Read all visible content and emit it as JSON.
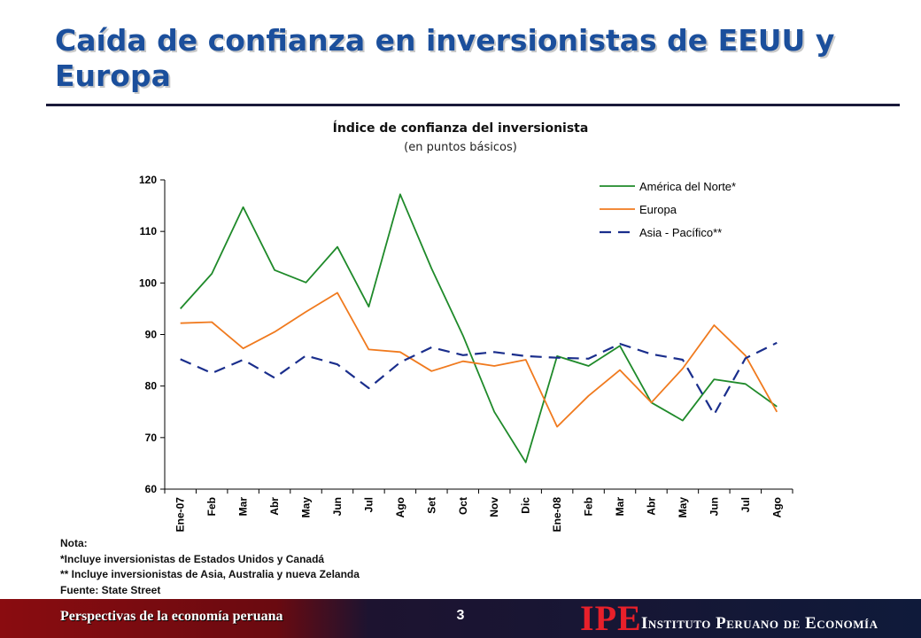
{
  "slide": {
    "title": "Caída de confianza en inversionistas de EEUU y Europa"
  },
  "chart_data": {
    "type": "line",
    "title": "Índice de confianza del inversionista",
    "subtitle": "(en puntos básicos)",
    "categories": [
      "Ene-07",
      "Feb",
      "Mar",
      "Abr",
      "May",
      "Jun",
      "Jul",
      "Ago",
      "Set",
      "Oct",
      "Nov",
      "Dic",
      "Ene-08",
      "Feb",
      "Mar",
      "Abr",
      "May",
      "Jun",
      "Jul",
      "Ago"
    ],
    "ylim": [
      60,
      120
    ],
    "yticks": [
      60,
      70,
      80,
      90,
      100,
      110,
      120
    ],
    "legend_position": "top-right",
    "grid": false,
    "series": [
      {
        "name": "América del Norte*",
        "color": "#1f8a2a",
        "dash": "solid",
        "values": [
          95,
          101.8,
          114.7,
          102.5,
          100.1,
          107.0,
          95.4,
          117.2,
          102.8,
          89.8,
          75.0,
          65.2,
          85.8,
          83.9,
          87.8,
          76.8,
          73.3,
          81.3,
          80.4,
          76.0
        ]
      },
      {
        "name": "Europa",
        "color": "#f07a1e",
        "dash": "solid",
        "values": [
          92.2,
          92.4,
          87.3,
          90.5,
          94.4,
          98.1,
          87.1,
          86.6,
          82.9,
          84.8,
          83.9,
          85.1,
          72.1,
          78.1,
          83.1,
          76.8,
          83.4,
          91.8,
          85.9,
          75.0
        ]
      },
      {
        "name": "Asia - Pacífico**",
        "color": "#1a2e8c",
        "dash": "dashed",
        "values": [
          85.2,
          82.5,
          85.1,
          81.6,
          85.9,
          84.2,
          79.6,
          84.6,
          87.5,
          86.0,
          86.6,
          85.8,
          85.5,
          85.3,
          88.2,
          86.2,
          85.1,
          74.5,
          85.4,
          88.4
        ]
      }
    ]
  },
  "notes": {
    "heading": "Nota:",
    "line1": "*Incluye inversionistas de Estados Unidos y Canadá",
    "line2": "** Incluye inversionistas de Asia, Australia y nueva Zelanda",
    "source": "Fuente: State Street"
  },
  "footer": {
    "left_text": "Perspectivas de la economía peruana",
    "page_number": "3",
    "logo_text": "IPE",
    "institute_name": "Instituto Peruano de Economía",
    "brand_colors": {
      "bar_left": "#8a0c10",
      "bar_right": "#0f1a3a",
      "logo": "#e8202a"
    }
  }
}
